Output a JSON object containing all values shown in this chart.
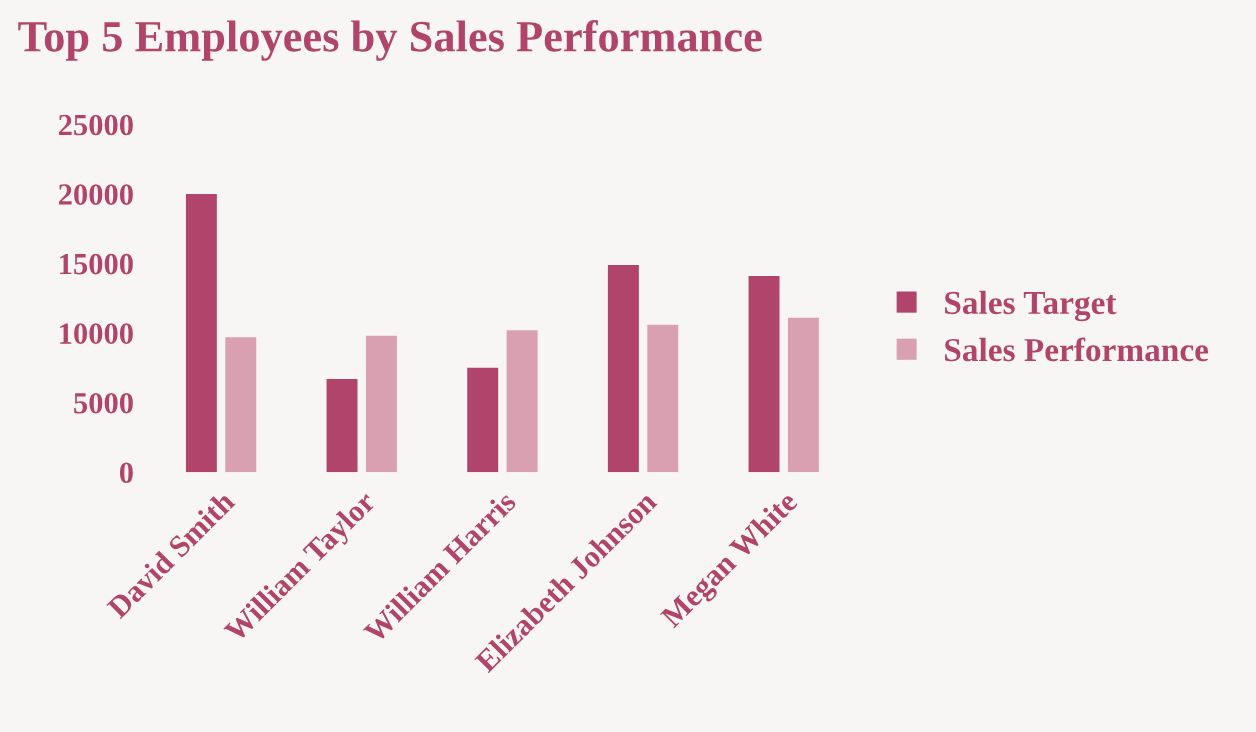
{
  "chart_data": {
    "type": "bar",
    "title": "Top 5 Employees by Sales Performance",
    "categories": [
      "David Smith",
      "William Taylor",
      "William Harris",
      "Elizabeth Johnson",
      "Megan White"
    ],
    "series": [
      {
        "name": "Sales Target",
        "color": "#b0446a",
        "values": [
          20000,
          6700,
          7500,
          14900,
          14100
        ]
      },
      {
        "name": "Sales Performance",
        "color": "#d9a0b2",
        "values": [
          9700,
          9800,
          10200,
          10600,
          11100
        ]
      }
    ],
    "ylim": [
      0,
      25000
    ],
    "yticks": [
      0,
      5000,
      10000,
      15000,
      20000,
      25000
    ],
    "grid": false,
    "legend": "right"
  }
}
